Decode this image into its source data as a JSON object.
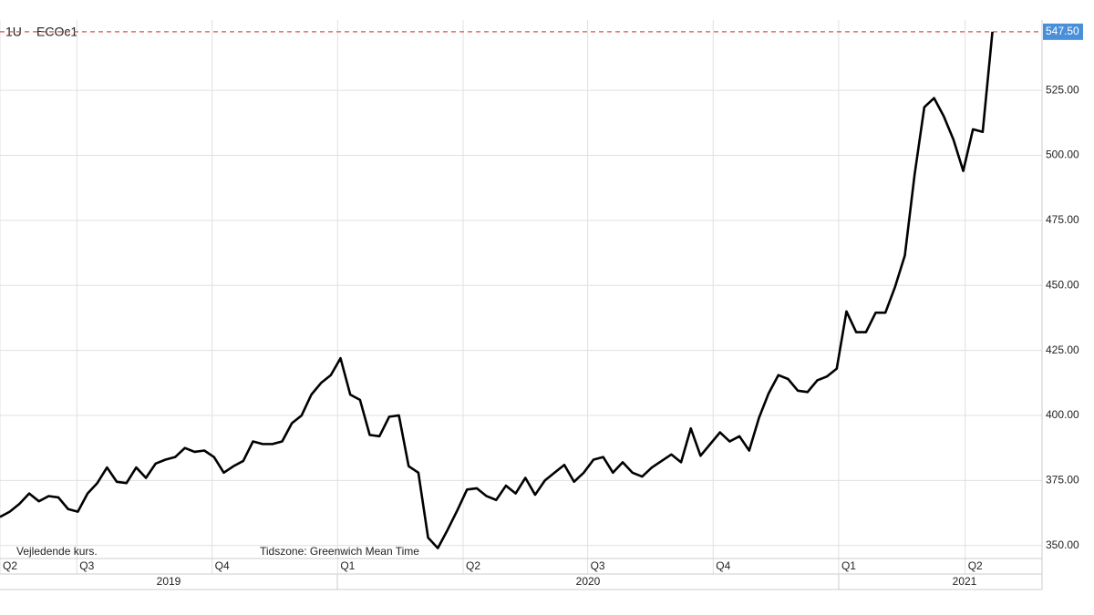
{
  "chart_data": {
    "type": "line",
    "title": "1U",
    "subtitle": "ECOc1",
    "notes": [
      "Vejledende kurs.",
      "Tidszone: Greenwich Mean Time"
    ],
    "series": [
      {
        "name": "ECOc1",
        "color": "#000000",
        "values": [
          361,
          363,
          366,
          370,
          367,
          369,
          368.5,
          364,
          363,
          370,
          374,
          380,
          374.5,
          374,
          380,
          376,
          381.5,
          383,
          384,
          387.5,
          386,
          386.5,
          384,
          378,
          380.5,
          382.5,
          390,
          389,
          389,
          390,
          397,
          400,
          408,
          412.5,
          415.5,
          422,
          408,
          406,
          392.5,
          392,
          399.5,
          400,
          380.5,
          378,
          353,
          349,
          356,
          363.5,
          371.5,
          372,
          369,
          367.5,
          373,
          370,
          376,
          369.5,
          375,
          378,
          381,
          374.5,
          378,
          383,
          384,
          378,
          382,
          378,
          376.5,
          380,
          382.5,
          385,
          382,
          395,
          384.5,
          389,
          393.5,
          390,
          392,
          386.5,
          399,
          408.5,
          415.5,
          414,
          409.5,
          409,
          413.5,
          415,
          418,
          440,
          432,
          432,
          439.5,
          439.5,
          449.5,
          461.5,
          492.5,
          518.5,
          522,
          515,
          506,
          494,
          510,
          509,
          547.5
        ]
      }
    ],
    "current_price": {
      "value": 547.5,
      "label": "547.50",
      "color": "#4a90d9",
      "line_color": "#d9534f"
    },
    "xlim": [
      0,
      107.1
    ],
    "xticks": [
      {
        "value": 0,
        "label": "Q2"
      },
      {
        "value": 7.9,
        "label": "Q3"
      },
      {
        "value": 21.8,
        "label": "Q4"
      },
      {
        "value": 34.7,
        "label": "Q1"
      },
      {
        "value": 47.6,
        "label": "Q2"
      },
      {
        "value": 60.4,
        "label": "Q3"
      },
      {
        "value": 73.3,
        "label": "Q4"
      },
      {
        "value": 86.2,
        "label": "Q1"
      },
      {
        "value": 99.2,
        "label": "Q2"
      }
    ],
    "years": [
      "2019",
      "2020",
      "2021"
    ],
    "ylim": [
      345,
      552
    ],
    "yticks": [
      {
        "value": 350,
        "label": "350.00"
      },
      {
        "value": 375,
        "label": "375.00"
      },
      {
        "value": 400,
        "label": "400.00"
      },
      {
        "value": 425,
        "label": "425.00"
      },
      {
        "value": 450,
        "label": "450.00"
      },
      {
        "value": 475,
        "label": "475.00"
      },
      {
        "value": 500,
        "label": "500.00"
      },
      {
        "value": 525,
        "label": "525.00"
      }
    ],
    "grid": true
  }
}
